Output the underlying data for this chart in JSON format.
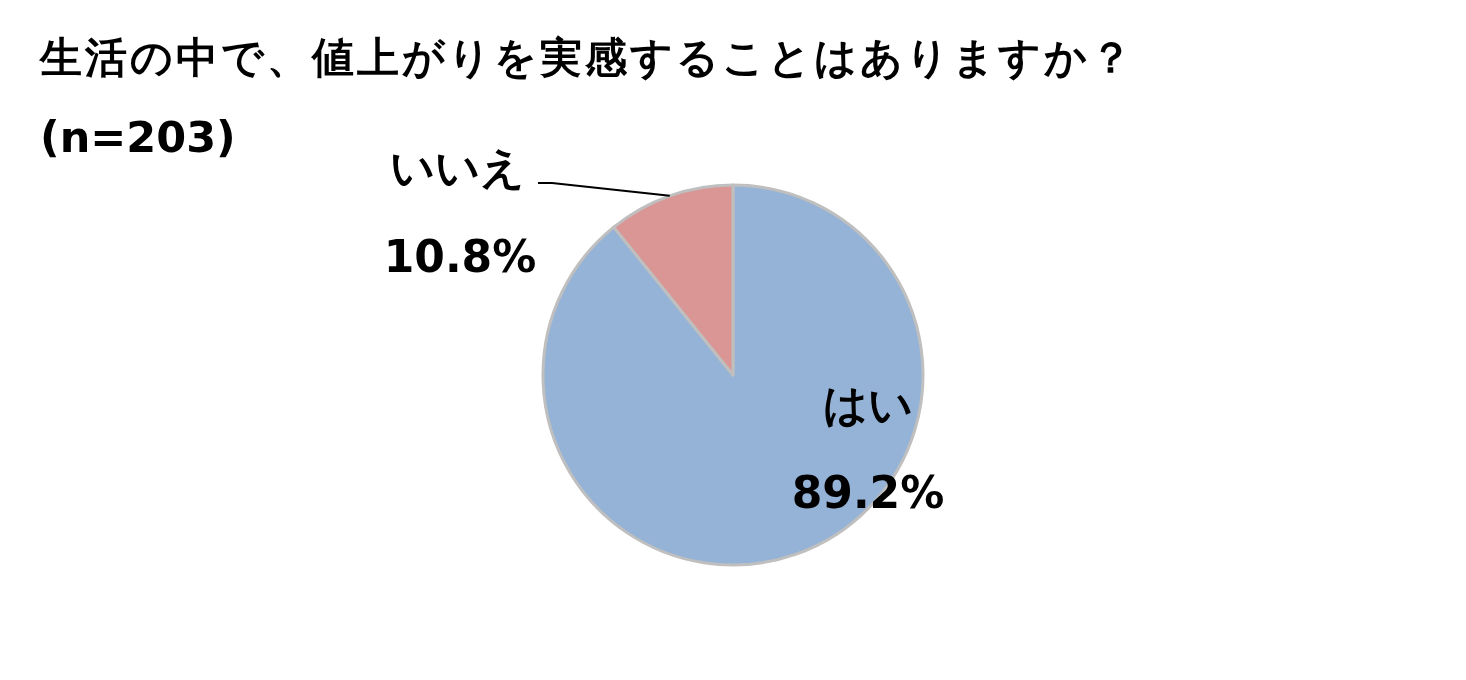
{
  "chart_data": {
    "type": "pie",
    "title": "生活の中で、値上がりを実感することはありますか？",
    "subtitle": "(n=203)",
    "categories": [
      "はい",
      "いいえ"
    ],
    "values": [
      89.2,
      10.8
    ],
    "colors": [
      "#95b3d7",
      "#d99694"
    ],
    "value_labels": [
      "89.2%",
      "10.8%"
    ]
  }
}
